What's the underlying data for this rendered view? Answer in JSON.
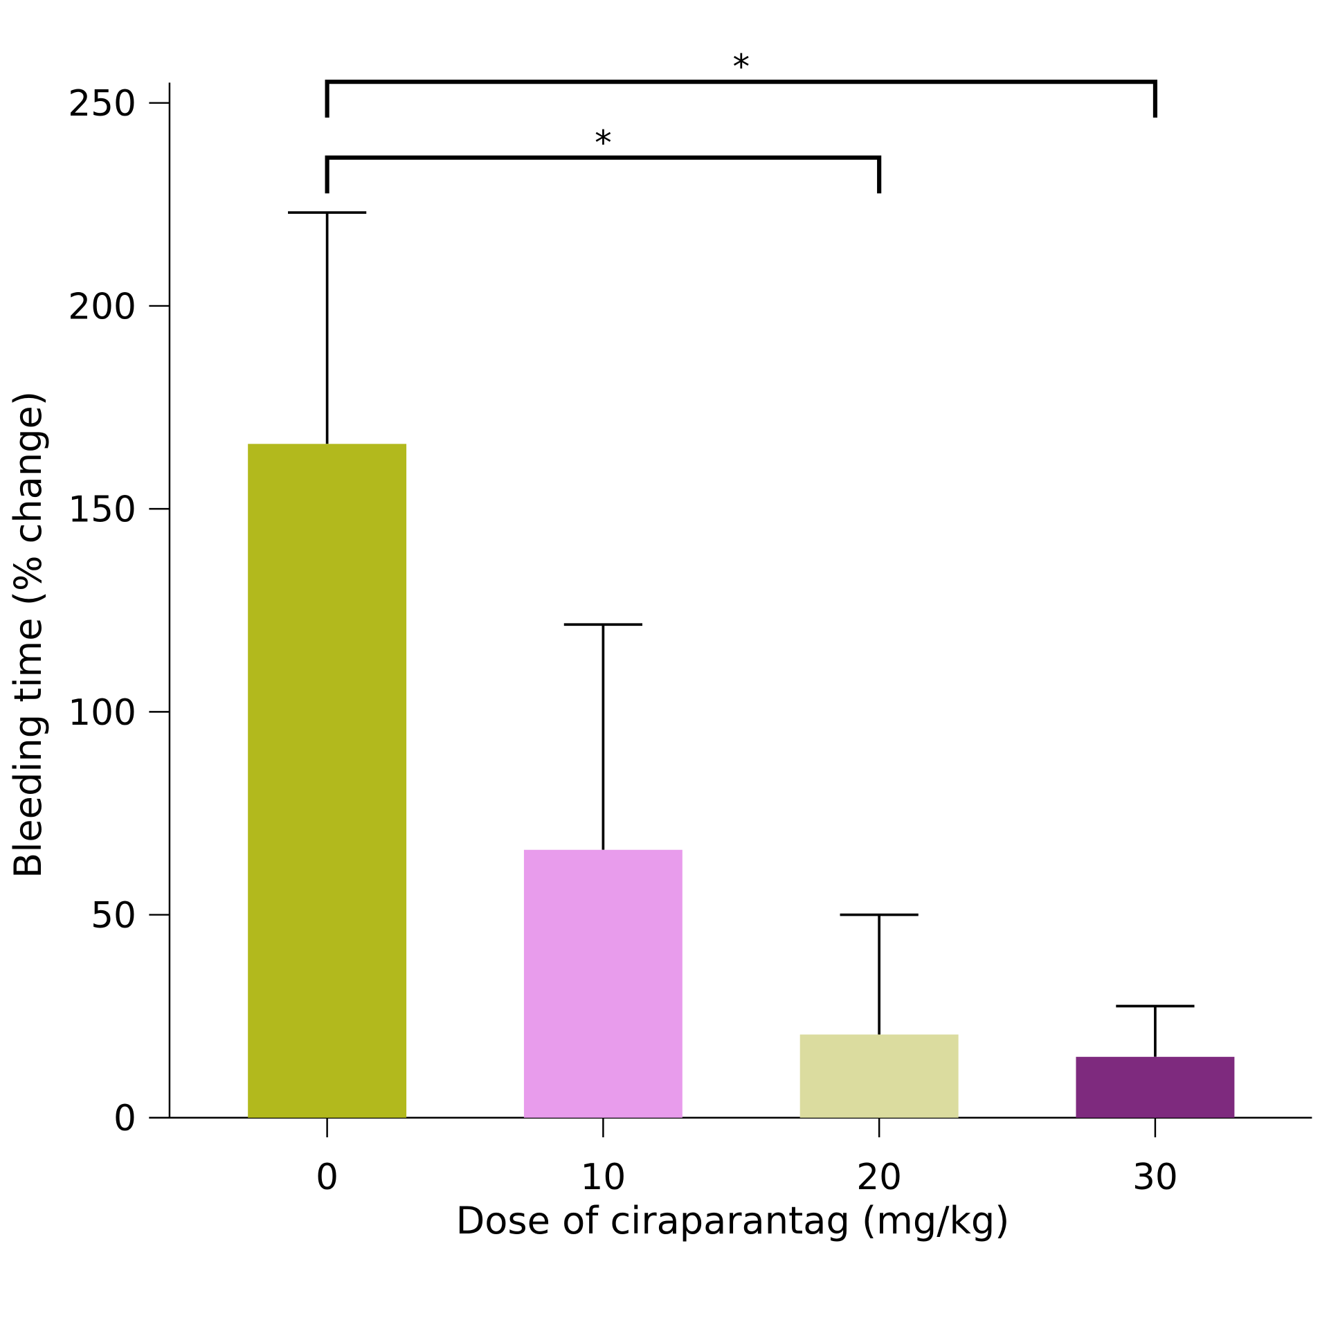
{
  "chart_data": {
    "type": "bar",
    "categories": [
      "0",
      "10",
      "20",
      "30"
    ],
    "values": [
      166,
      66,
      20.5,
      15
    ],
    "errors": [
      57,
      55.5,
      29.5,
      12.5
    ],
    "colors": [
      "#b2b91d",
      "#e89cec",
      "#dbdc9f",
      "#7e2a7e"
    ],
    "ylim": [
      0,
      255
    ],
    "yticks": [
      0,
      50,
      100,
      150,
      200,
      250
    ],
    "xlabel": "Dose of ciraparantag (mg/kg)",
    "ylabel": "Bleeding time (% change)",
    "comparisons": [
      {
        "label": "*",
        "between": [
          "0",
          "20"
        ]
      },
      {
        "label": "*",
        "between": [
          "0",
          "30"
        ]
      }
    ]
  }
}
